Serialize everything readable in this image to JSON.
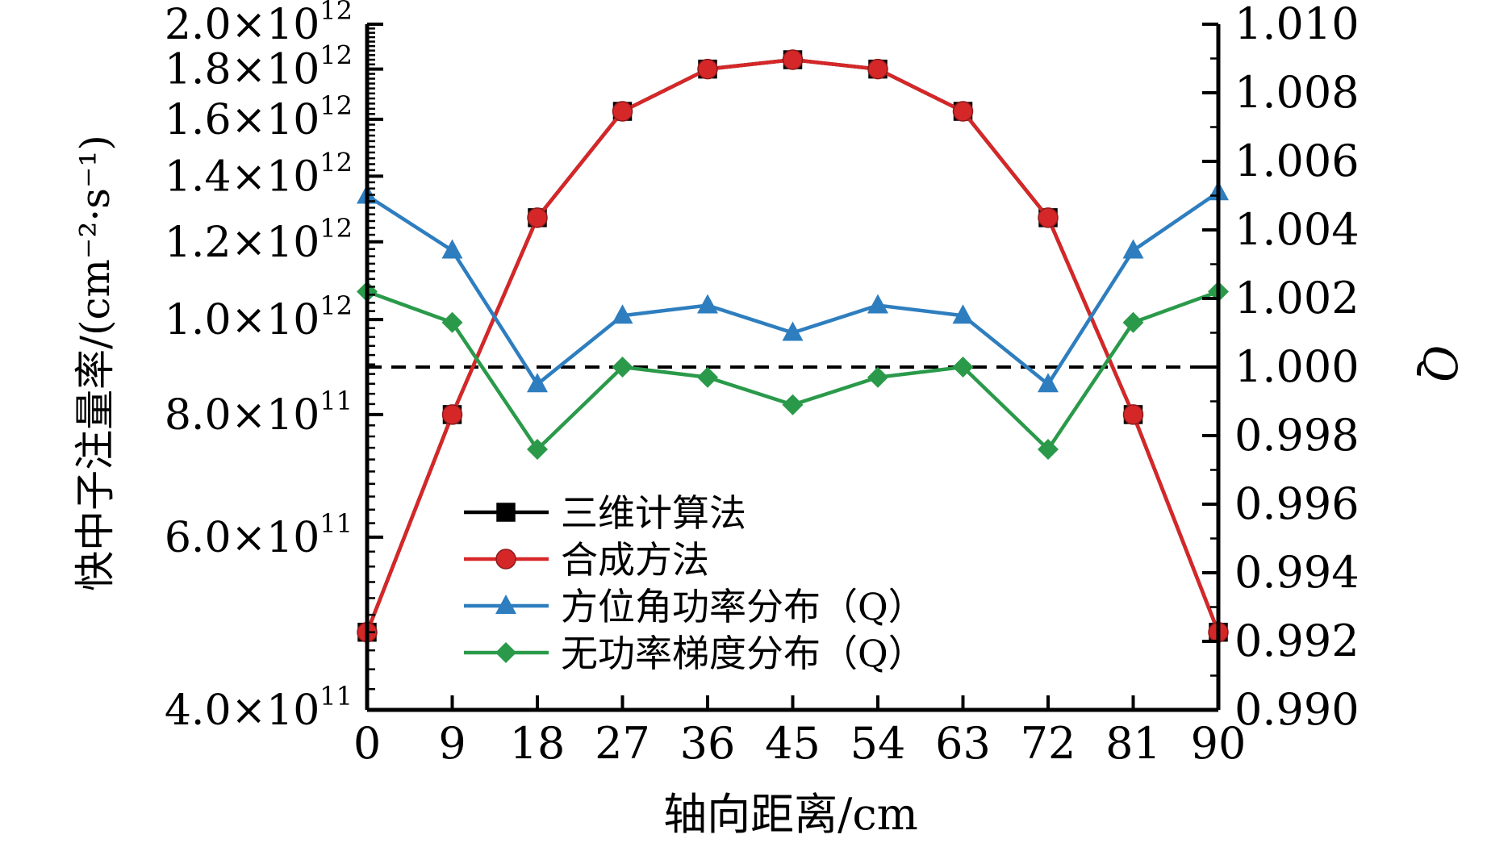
{
  "chart_data": {
    "type": "line",
    "xlabel": "轴向距离/cm",
    "ylabel_left": "快中子注量率/(cm⁻²·s⁻¹)",
    "ylabel_right": "Q",
    "x": [
      0,
      9,
      18,
      27,
      36,
      45,
      54,
      63,
      72,
      81,
      90
    ],
    "xlim": [
      0,
      90
    ],
    "x_ticks": [
      "0",
      "9",
      "18",
      "27",
      "36",
      "45",
      "54",
      "63",
      "72",
      "81",
      "90"
    ],
    "left_axis": {
      "scale": "log",
      "ylim": [
        400000000000.0,
        2000000000000.0
      ],
      "ticks": [
        {
          "value": 400000000000.0,
          "mantissa": "4.0",
          "exponent": "11"
        },
        {
          "value": 600000000000.0,
          "mantissa": "6.0",
          "exponent": "11"
        },
        {
          "value": 800000000000.0,
          "mantissa": "8.0",
          "exponent": "11"
        },
        {
          "value": 1000000000000.0,
          "mantissa": "1.0",
          "exponent": "12"
        },
        {
          "value": 1200000000000.0,
          "mantissa": "1.2",
          "exponent": "12"
        },
        {
          "value": 1400000000000.0,
          "mantissa": "1.4",
          "exponent": "12"
        },
        {
          "value": 1600000000000.0,
          "mantissa": "1.6",
          "exponent": "12"
        },
        {
          "value": 1800000000000.0,
          "mantissa": "1.8",
          "exponent": "12"
        },
        {
          "value": 2000000000000.0,
          "mantissa": "2.0",
          "exponent": "12"
        }
      ],
      "times_sign": "×",
      "base": "10"
    },
    "right_axis": {
      "scale": "linear",
      "ylim": [
        0.99,
        1.01
      ],
      "ticks": [
        "0.990",
        "0.992",
        "0.994",
        "0.996",
        "0.998",
        "1.000",
        "1.002",
        "1.004",
        "1.006",
        "1.008",
        "1.010"
      ]
    },
    "reference_line": {
      "axis": "right",
      "value": 1.0,
      "style": "dashed",
      "color": "#000000"
    },
    "series": [
      {
        "name": "三维计算法",
        "axis": "left",
        "color": "#000000",
        "marker": "square",
        "values": [
          480000000000.0,
          800000000000.0,
          1270000000000.0,
          1630000000000.0,
          1800000000000.0,
          1840000000000.0,
          1800000000000.0,
          1630000000000.0,
          1270000000000.0,
          800000000000.0,
          480000000000.0
        ]
      },
      {
        "name": "合成方法",
        "axis": "left",
        "color": "#d62728",
        "marker": "circle",
        "values": [
          480000000000.0,
          800000000000.0,
          1270000000000.0,
          1630000000000.0,
          1800000000000.0,
          1840000000000.0,
          1800000000000.0,
          1630000000000.0,
          1270000000000.0,
          800000000000.0,
          480000000000.0
        ]
      },
      {
        "name": "方位角功率分布（Q）",
        "axis": "right",
        "color": "#2e7ebf",
        "marker": "triangle",
        "values": [
          1.005,
          1.0034,
          0.9995,
          1.0015,
          1.0018,
          1.001,
          1.0018,
          1.0015,
          0.9995,
          1.0034,
          1.0051
        ]
      },
      {
        "name": "无功率梯度分布（Q）",
        "axis": "right",
        "color": "#2a9a4a",
        "marker": "diamond",
        "values": [
          1.0022,
          1.0013,
          0.9976,
          1.0,
          0.9997,
          0.9989,
          0.9997,
          1.0,
          0.9976,
          1.0013,
          1.0022
        ]
      }
    ],
    "legend_position": "center-left"
  }
}
